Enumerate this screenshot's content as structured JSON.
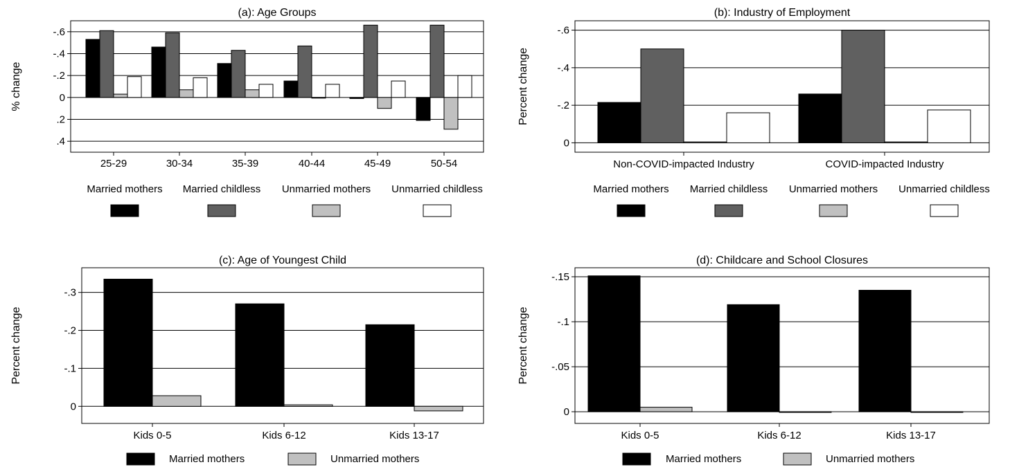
{
  "chart_data": [
    {
      "type": "bar",
      "title": "(a): Age Groups",
      "ylabel": "% change",
      "xlabel": "",
      "ylim": [
        -0.7,
        0.5
      ],
      "reversed_y": true,
      "yticks": [
        -0.6,
        -0.4,
        -0.2,
        0,
        0.2,
        0.4
      ],
      "ytick_labels": [
        "-.6",
        "-.4",
        "-.2",
        "0",
        ".2",
        ".4"
      ],
      "categories": [
        "25-29",
        "30-34",
        "35-39",
        "40-44",
        "45-49",
        "50-54"
      ],
      "series": [
        {
          "name": "Married mothers",
          "values": [
            -0.53,
            -0.46,
            -0.31,
            -0.15,
            0.01,
            0.21
          ]
        },
        {
          "name": "Married childless",
          "values": [
            -0.61,
            -0.59,
            -0.43,
            -0.47,
            -0.66,
            -0.66
          ]
        },
        {
          "name": "Unmarried mothers",
          "values": [
            -0.03,
            -0.07,
            -0.07,
            0.0,
            0.1,
            0.29
          ]
        },
        {
          "name": "Unmarried childless",
          "values": [
            -0.19,
            -0.18,
            -0.12,
            -0.12,
            -0.15,
            -0.2
          ]
        }
      ],
      "grid": true,
      "legend_position": "bottom"
    },
    {
      "type": "bar",
      "title": "(b): Industry of Employment",
      "ylabel": "Percent change",
      "xlabel": "",
      "ylim": [
        -0.65,
        0.05
      ],
      "reversed_y": true,
      "yticks": [
        -0.6,
        -0.4,
        -0.2,
        0
      ],
      "ytick_labels": [
        "-.6",
        "-.4",
        "-.2",
        "0"
      ],
      "categories": [
        "Non-COVID-impacted Industry",
        "COVID-impacted Industry"
      ],
      "series": [
        {
          "name": "Married mothers",
          "values": [
            -0.215,
            -0.26
          ]
        },
        {
          "name": "Married childless",
          "values": [
            -0.5,
            -0.6
          ]
        },
        {
          "name": "Unmarried mothers",
          "values": [
            -0.005,
            -0.005
          ]
        },
        {
          "name": "Unmarried childless",
          "values": [
            -0.16,
            -0.175
          ]
        }
      ],
      "grid": true,
      "legend_position": "bottom"
    },
    {
      "type": "bar",
      "title": "(c): Age of Youngest Child",
      "ylabel": "Percent change",
      "xlabel": "",
      "ylim": [
        -0.365,
        0.045
      ],
      "reversed_y": true,
      "yticks": [
        -0.3,
        -0.2,
        -0.1,
        0
      ],
      "ytick_labels": [
        "-.3",
        "-.2",
        "-.1",
        "0"
      ],
      "categories": [
        "Kids 0-5",
        "Kids 6-12",
        "Kids 13-17"
      ],
      "series": [
        {
          "name": "Married mothers",
          "values": [
            -0.335,
            -0.27,
            -0.215
          ]
        },
        {
          "name": "Unmarried mothers",
          "values": [
            -0.028,
            -0.004,
            0.012
          ]
        }
      ],
      "grid": true,
      "legend_position": "bottom"
    },
    {
      "type": "bar",
      "title": "(d): Childcare and School Closures",
      "ylabel": "Percent change",
      "xlabel": "",
      "ylim": [
        -0.16,
        0.013
      ],
      "reversed_y": true,
      "yticks": [
        -0.15,
        -0.1,
        -0.05,
        0
      ],
      "ytick_labels": [
        "-.15",
        "-.1",
        "-.05",
        "0"
      ],
      "categories": [
        "Kids 0-5",
        "Kids 6-12",
        "Kids 13-17"
      ],
      "series": [
        {
          "name": "Married mothers",
          "values": [
            -0.151,
            -0.119,
            -0.135
          ]
        },
        {
          "name": "Unmarried mothers",
          "values": [
            -0.005,
            0.0,
            0.0
          ]
        }
      ],
      "grid": true,
      "legend_position": "bottom"
    }
  ],
  "colors": {
    "Married mothers": "#000000",
    "Married childless": "#606060",
    "Unmarried mothers": "#c0c0c0",
    "Unmarried childless": "#ffffff"
  }
}
